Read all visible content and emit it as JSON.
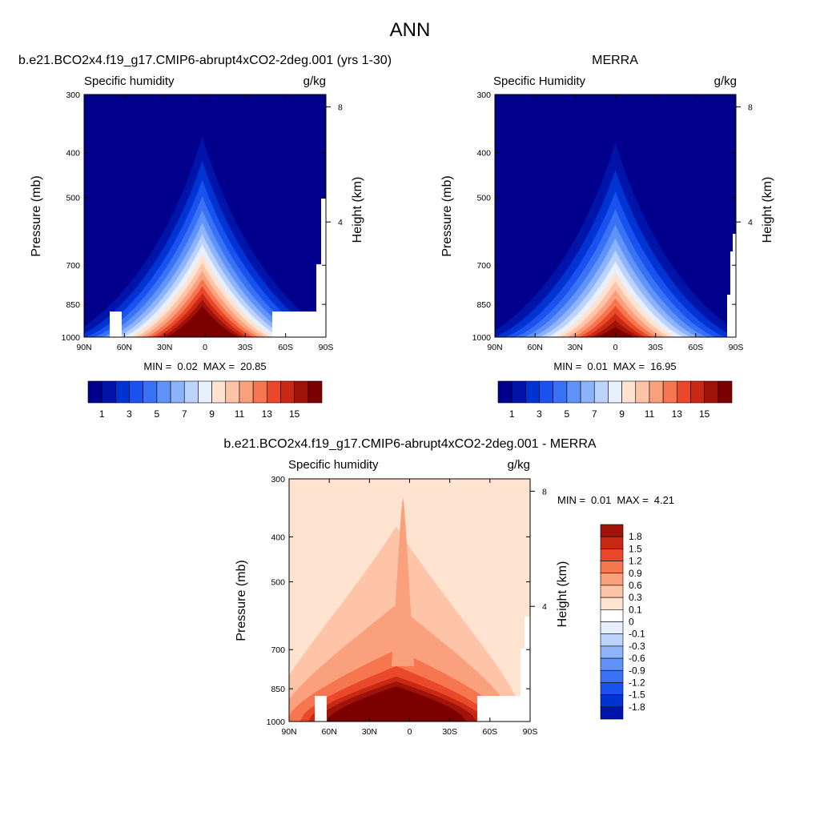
{
  "figure_title": "ANN",
  "colors": {
    "abs_levels": [
      "#00008c",
      "#0014aa",
      "#0033d1",
      "#1a52ef",
      "#3a72f5",
      "#5f93f9",
      "#8cb3fb",
      "#bcd4fd",
      "#e8f0ff",
      "#ffe3d1",
      "#fdc4a8",
      "#fba07c",
      "#f6774f",
      "#e9492a",
      "#c92812",
      "#a0130a",
      "#7c0000"
    ],
    "diff_levels": [
      "#00008c",
      "#0014aa",
      "#0033d1",
      "#1a52ef",
      "#3a72f5",
      "#5f93f9",
      "#8cb3fb",
      "#bcd4fd",
      "#e8f0ff",
      "#ffffff",
      "#ffe3d1",
      "#fdc4a8",
      "#fba07c",
      "#f6774f",
      "#e9492a",
      "#c92812",
      "#a0130a",
      "#7c0000"
    ]
  },
  "chart_data": [
    {
      "type": "contour",
      "panel": "model",
      "title": "b.e21.BCO2x4.f19_g17.CMIP6-abrupt4xCO2-2deg.001 (yrs 1-30)",
      "left_label": "Specific humidity",
      "right_label": "g/kg",
      "ylabel": "Pressure (mb)",
      "ylabel_right": "Height (km)",
      "x_ticks": [
        "90N",
        "60N",
        "30N",
        "0",
        "30S",
        "60S",
        "90S"
      ],
      "y_ticks": [
        "300",
        "400",
        "500",
        "700",
        "850",
        "1000"
      ],
      "y_ticks_right": [
        "8",
        "4"
      ],
      "xlim": [
        90,
        -90
      ],
      "ylim": [
        1000,
        300
      ],
      "min_label": "MIN =",
      "min_value": "0.02",
      "max_label": "MAX =",
      "max_value": "20.85",
      "peak": 20.85,
      "surface_edge": 850,
      "colorbar_labels": [
        "1",
        "3",
        "5",
        "7",
        "9",
        "11",
        "13",
        "15"
      ]
    },
    {
      "type": "contour",
      "panel": "obs",
      "title": "MERRA",
      "left_label": "Specific Humidity",
      "right_label": "g/kg",
      "ylabel": "Pressure (mb)",
      "ylabel_right": "Height (km)",
      "x_ticks": [
        "90N",
        "60N",
        "30N",
        "0",
        "30S",
        "60S",
        "90S"
      ],
      "y_ticks": [
        "300",
        "400",
        "500",
        "700",
        "850",
        "1000"
      ],
      "y_ticks_right": [
        "8",
        "4"
      ],
      "xlim": [
        90,
        -90
      ],
      "ylim": [
        1000,
        300
      ],
      "min_label": "MIN =",
      "min_value": "0.01",
      "max_label": "MAX =",
      "max_value": "16.95",
      "peak": 16.95,
      "surface_edge": 700,
      "colorbar_labels": [
        "1",
        "3",
        "5",
        "7",
        "9",
        "11",
        "13",
        "15"
      ]
    },
    {
      "type": "contour",
      "panel": "difference",
      "title": "b.e21.BCO2x4.f19_g17.CMIP6-abrupt4xCO2-2deg.001 - MERRA",
      "left_label": "Specific humidity",
      "right_label": "g/kg",
      "ylabel": "Pressure (mb)",
      "ylabel_right": "Height (km)",
      "x_ticks": [
        "90N",
        "60N",
        "30N",
        "0",
        "30S",
        "60S",
        "90S"
      ],
      "y_ticks": [
        "300",
        "400",
        "500",
        "700",
        "850",
        "1000"
      ],
      "y_ticks_right": [
        "8",
        "4"
      ],
      "xlim": [
        90,
        -90
      ],
      "ylim": [
        1000,
        300
      ],
      "min_label": "MIN =",
      "min_value": "0.01",
      "max_label": "MAX =",
      "max_value": "4.21",
      "colorbar_labels": [
        "1.8",
        "1.5",
        "1.2",
        "0.9",
        "0.6",
        "0.3",
        "0.1",
        "0",
        "-0.1",
        "-0.3",
        "-0.6",
        "-0.9",
        "-1.2",
        "-1.5",
        "-1.8"
      ]
    }
  ]
}
